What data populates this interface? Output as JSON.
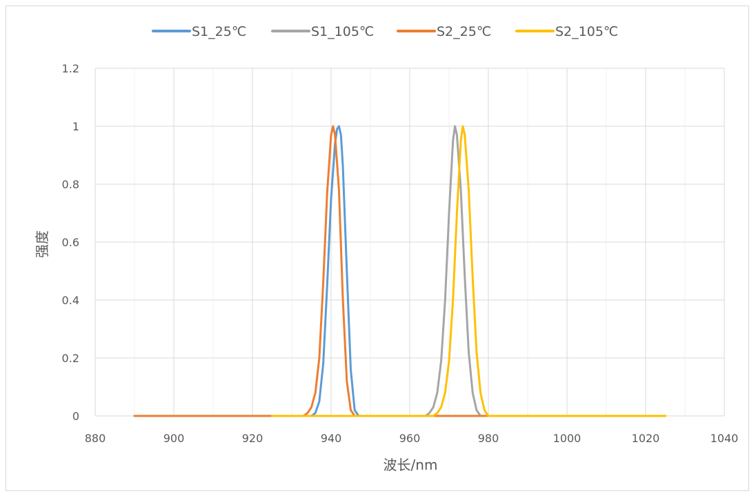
{
  "chart_data": {
    "type": "line",
    "title": "",
    "xlabel": "波长/nm",
    "ylabel": "强度",
    "xlim": [
      880,
      1040
    ],
    "ylim": [
      0,
      1.2
    ],
    "xticks": [
      880,
      900,
      920,
      940,
      960,
      980,
      1000,
      1020,
      1040
    ],
    "yticks": [
      0,
      0.2,
      0.4,
      0.6,
      0.8,
      1,
      1.2
    ],
    "ytick_labels": [
      "0",
      "0.2",
      "0.4",
      "0.6",
      "0.8",
      "1",
      "1.2"
    ],
    "grid": true,
    "legend_position": "top",
    "series": [
      {
        "name": "S1_25℃",
        "color": "#5B9BD5",
        "x": [
          890,
          935,
          936,
          937,
          938,
          939,
          940,
          941,
          941.5,
          942,
          942.5,
          943,
          944,
          945,
          946,
          947,
          990
        ],
        "y": [
          0,
          0,
          0.01,
          0.05,
          0.18,
          0.45,
          0.75,
          0.94,
          0.99,
          1.0,
          0.97,
          0.86,
          0.5,
          0.16,
          0.02,
          0,
          0
        ]
      },
      {
        "name": "S1_105℃",
        "color": "#A5A5A5",
        "x": [
          925,
          964,
          965,
          966,
          967,
          968,
          969,
          970,
          971,
          971.5,
          972,
          973,
          974,
          975,
          976,
          977,
          978,
          1025
        ],
        "y": [
          0,
          0,
          0.01,
          0.03,
          0.08,
          0.19,
          0.4,
          0.7,
          0.95,
          1.0,
          0.97,
          0.78,
          0.48,
          0.22,
          0.08,
          0.02,
          0,
          0
        ]
      },
      {
        "name": "S2_25℃",
        "color": "#ED7D31",
        "x": [
          890,
          933,
          934,
          935,
          936,
          937,
          938,
          939,
          940,
          940.5,
          941,
          942,
          943,
          944,
          945,
          946,
          990
        ],
        "y": [
          0,
          0,
          0.01,
          0.03,
          0.08,
          0.2,
          0.46,
          0.77,
          0.97,
          1.0,
          0.97,
          0.78,
          0.4,
          0.12,
          0.02,
          0,
          0
        ]
      },
      {
        "name": "S2_105℃",
        "color": "#FFC000",
        "x": [
          925,
          966,
          967,
          968,
          969,
          970,
          971,
          972,
          973,
          973.5,
          974,
          975,
          976,
          977,
          978,
          979,
          980,
          1025
        ],
        "y": [
          0,
          0,
          0.01,
          0.03,
          0.08,
          0.19,
          0.4,
          0.7,
          0.95,
          1.0,
          0.97,
          0.78,
          0.48,
          0.22,
          0.08,
          0.02,
          0,
          0
        ]
      }
    ]
  }
}
